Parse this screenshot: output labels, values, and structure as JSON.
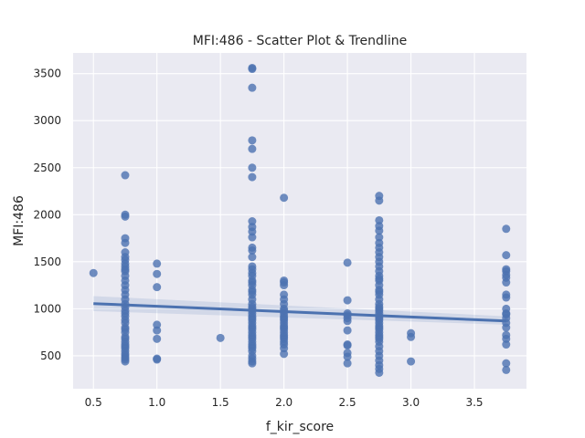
{
  "chart_data": {
    "type": "scatter",
    "title": "MFI:486 - Scatter Plot & Trendline",
    "xlabel": "f_kir_score",
    "ylabel": "MFI:486",
    "xlim": [
      0.34,
      3.91
    ],
    "ylim": [
      150,
      3720
    ],
    "xticks": [
      0.5,
      1.0,
      1.5,
      2.0,
      2.5,
      3.0,
      3.5
    ],
    "xtick_labels": [
      "0.5",
      "1.0",
      "1.5",
      "2.0",
      "2.5",
      "3.0",
      "3.5"
    ],
    "yticks": [
      500,
      1000,
      1500,
      2000,
      2500,
      3000,
      3500
    ],
    "ytick_labels": [
      "500",
      "1000",
      "1500",
      "2000",
      "2500",
      "3000",
      "3500"
    ],
    "grid": true,
    "legend": "none",
    "colors": {
      "background": "#eaeaf2",
      "grid": "#ffffff",
      "points": "#4c72b0",
      "trendline": "#4c72b0",
      "ci_band": "#4c72b0"
    },
    "trendline": {
      "x": [
        0.5,
        3.75
      ],
      "y": [
        1055,
        870
      ],
      "ci_lower": [
        975,
        830
      ],
      "ci_upper": [
        1135,
        920
      ]
    },
    "series": [
      {
        "x": [
          0.5,
          0.75,
          0.75,
          0.75,
          0.75,
          0.75,
          0.75,
          0.75,
          0.75,
          0.75,
          0.75,
          0.75,
          0.75,
          0.75,
          0.75,
          0.75,
          0.75,
          0.75,
          0.75,
          0.75,
          0.75,
          0.75,
          0.75,
          0.75,
          0.75,
          0.75,
          0.75,
          0.75,
          0.75,
          0.75,
          0.75,
          0.75,
          0.75,
          0.75,
          0.75,
          0.75,
          0.75,
          0.75,
          0.75,
          0.75,
          0.75,
          1.0,
          1.0,
          1.0,
          1.0,
          1.0,
          1.0,
          1.0,
          1.0,
          1.5,
          1.75,
          1.75,
          1.75,
          1.75,
          1.75,
          1.75,
          1.75,
          1.75,
          1.75,
          1.75,
          1.75,
          1.75,
          1.75,
          1.75,
          1.75,
          1.75,
          1.75,
          1.75,
          1.75,
          1.75,
          1.75,
          1.75,
          1.75,
          1.75,
          1.75,
          1.75,
          1.75,
          1.75,
          1.75,
          1.75,
          1.75,
          1.75,
          1.75,
          1.75,
          1.75,
          1.75,
          1.75,
          1.75,
          1.75,
          1.75,
          1.75,
          1.75,
          1.75,
          1.75,
          1.75,
          1.75,
          1.75,
          1.75,
          1.75,
          1.75,
          2.0,
          2.0,
          2.0,
          2.0,
          2.0,
          2.0,
          2.0,
          2.0,
          2.0,
          2.0,
          2.0,
          2.0,
          2.0,
          2.0,
          2.0,
          2.0,
          2.0,
          2.0,
          2.0,
          2.0,
          2.0,
          2.0,
          2.0,
          2.0,
          2.0,
          2.5,
          2.5,
          2.5,
          2.5,
          2.5,
          2.5,
          2.5,
          2.5,
          2.5,
          2.5,
          2.5,
          2.5,
          2.75,
          2.75,
          2.75,
          2.75,
          2.75,
          2.75,
          2.75,
          2.75,
          2.75,
          2.75,
          2.75,
          2.75,
          2.75,
          2.75,
          2.75,
          2.75,
          2.75,
          2.75,
          2.75,
          2.75,
          2.75,
          2.75,
          2.75,
          2.75,
          2.75,
          2.75,
          2.75,
          2.75,
          2.75,
          2.75,
          2.75,
          2.75,
          2.75,
          2.75,
          2.75,
          2.75,
          2.75,
          2.75,
          2.75,
          2.75,
          2.75,
          2.75,
          2.75,
          2.75,
          2.75,
          3.0,
          3.0,
          3.0,
          3.75,
          3.75,
          3.75,
          3.75,
          3.75,
          3.75,
          3.75,
          3.75,
          3.75,
          3.75,
          3.75,
          3.75,
          3.75,
          3.75,
          3.75,
          3.75,
          3.75,
          3.75,
          3.75,
          3.75
        ],
        "y": [
          1380,
          2420,
          2000,
          1980,
          1750,
          1700,
          1600,
          1550,
          1520,
          1480,
          1450,
          1420,
          1400,
          1350,
          1300,
          1250,
          1200,
          1150,
          1100,
          1050,
          1020,
          980,
          950,
          920,
          880,
          850,
          800,
          780,
          750,
          700,
          680,
          650,
          620,
          600,
          580,
          550,
          520,
          500,
          480,
          460,
          440,
          1480,
          1370,
          1230,
          830,
          770,
          680,
          470,
          460,
          690,
          3560,
          3550,
          3350,
          2790,
          2700,
          2500,
          2400,
          1930,
          1870,
          1820,
          1760,
          1650,
          1620,
          1550,
          1450,
          1420,
          1380,
          1350,
          1300,
          1280,
          1250,
          1200,
          1180,
          1150,
          1100,
          1050,
          1020,
          1000,
          980,
          950,
          920,
          900,
          880,
          850,
          820,
          800,
          780,
          750,
          720,
          700,
          680,
          650,
          620,
          600,
          580,
          550,
          500,
          470,
          440,
          420,
          2180,
          1300,
          1280,
          1250,
          1150,
          1100,
          1050,
          1000,
          980,
          950,
          920,
          900,
          880,
          850,
          820,
          800,
          780,
          750,
          720,
          700,
          680,
          650,
          620,
          580,
          520,
          1490,
          1090,
          950,
          930,
          900,
          870,
          770,
          620,
          610,
          530,
          490,
          420,
          2200,
          2150,
          1940,
          1880,
          1830,
          1760,
          1700,
          1650,
          1600,
          1550,
          1500,
          1450,
          1400,
          1350,
          1320,
          1300,
          1250,
          1200,
          1180,
          1150,
          1100,
          1050,
          1020,
          1000,
          980,
          950,
          920,
          900,
          880,
          850,
          820,
          800,
          780,
          750,
          720,
          700,
          680,
          650,
          600,
          550,
          500,
          450,
          400,
          360,
          320,
          740,
          700,
          440,
          1850,
          1570,
          1420,
          1400,
          1360,
          1330,
          1280,
          1150,
          1120,
          1000,
          950,
          940,
          900,
          850,
          800,
          720,
          680,
          620,
          420,
          350
        ]
      }
    ]
  }
}
